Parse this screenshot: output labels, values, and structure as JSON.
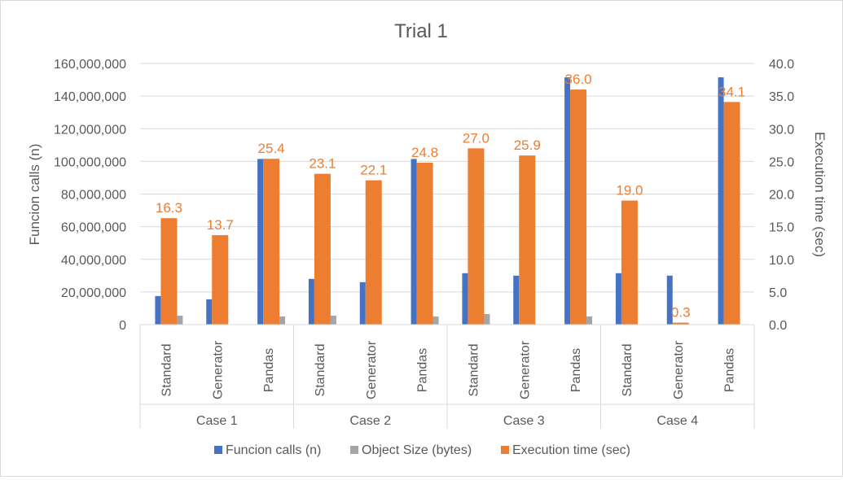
{
  "chart_data": {
    "type": "bar",
    "title": "Trial 1",
    "ylabel": "Funcion calls (n)",
    "y2label": "Execution time (sec)",
    "ylim": [
      0,
      160000000
    ],
    "y2lim": [
      0,
      40
    ],
    "yticks": [
      "0",
      "20,000,000",
      "40,000,000",
      "60,000,000",
      "80,000,000",
      "100,000,000",
      "120,000,000",
      "140,000,000",
      "160,000,000"
    ],
    "y2ticks": [
      "0.0",
      "5.0",
      "10.0",
      "15.0",
      "20.0",
      "25.0",
      "30.0",
      "35.0",
      "40.0"
    ],
    "groups": [
      "Case 1",
      "Case 2",
      "Case 3",
      "Case 4"
    ],
    "categories": [
      "Standard",
      "Generator",
      "Pandas",
      "Standard",
      "Generator",
      "Pandas",
      "Standard",
      "Generator",
      "Pandas",
      "Standard",
      "Generator",
      "Pandas"
    ],
    "legend_position": "bottom",
    "gridlines": true,
    "series": [
      {
        "name": "Funcion calls (n)",
        "axis": "left",
        "color": "#4472C4",
        "values": [
          17500000,
          15500000,
          101500000,
          28000000,
          26000000,
          101500000,
          31500000,
          30000000,
          151500000,
          31500000,
          30000000,
          151500000
        ]
      },
      {
        "name": "Object Size (bytes)",
        "axis": "left",
        "color": "#A5A5A5",
        "values": [
          5500000,
          0,
          5000000,
          5500000,
          0,
          5000000,
          6500000,
          0,
          5000000,
          0,
          0,
          0
        ]
      },
      {
        "name": "Execution time (sec)",
        "axis": "right",
        "color": "#ED7D31",
        "values": [
          16.3,
          13.7,
          25.4,
          23.1,
          22.1,
          24.8,
          27.0,
          25.9,
          36.0,
          19.0,
          0.3,
          34.1
        ],
        "labels": [
          "16.3",
          "13.7",
          "25.4",
          "23.1",
          "22.1",
          "24.8",
          "27.0",
          "25.9",
          "36.0",
          "19.0",
          "0.3",
          "34.1"
        ]
      }
    ]
  }
}
